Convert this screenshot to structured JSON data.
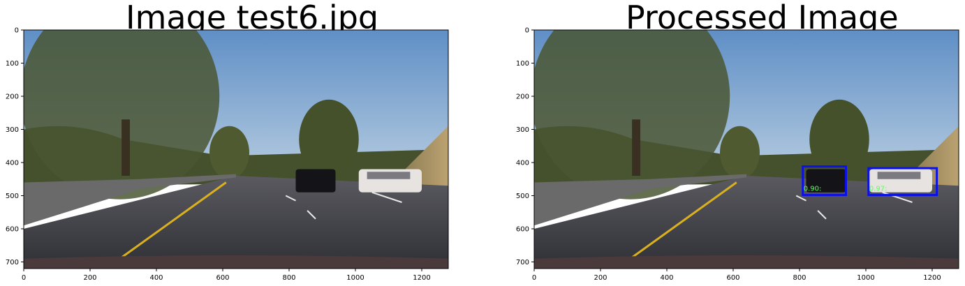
{
  "chart_data": [
    {
      "type": "image",
      "title": "Image test6.jpg",
      "xlim": [
        0,
        1280
      ],
      "ylim": [
        720,
        0
      ],
      "xticks": [
        0,
        200,
        400,
        600,
        800,
        1000,
        1200
      ],
      "yticks": [
        0,
        100,
        200,
        300,
        400,
        500,
        600,
        700
      ],
      "boxes": []
    },
    {
      "type": "image",
      "title": "Processed Image",
      "xlim": [
        0,
        1280
      ],
      "ylim": [
        720,
        0
      ],
      "xticks": [
        0,
        200,
        400,
        600,
        800,
        1000,
        1200
      ],
      "yticks": [
        0,
        100,
        200,
        300,
        400,
        500,
        600,
        700
      ],
      "boxes": [
        {
          "x0": 810,
          "y0": 412,
          "x1": 940,
          "y1": 498,
          "label": "0.90:"
        },
        {
          "x0": 1008,
          "y0": 417,
          "x1": 1214,
          "y1": 498,
          "label": "0.97:"
        }
      ],
      "box_color": "#0a10e6",
      "label_color": "#5cff5c"
    }
  ]
}
